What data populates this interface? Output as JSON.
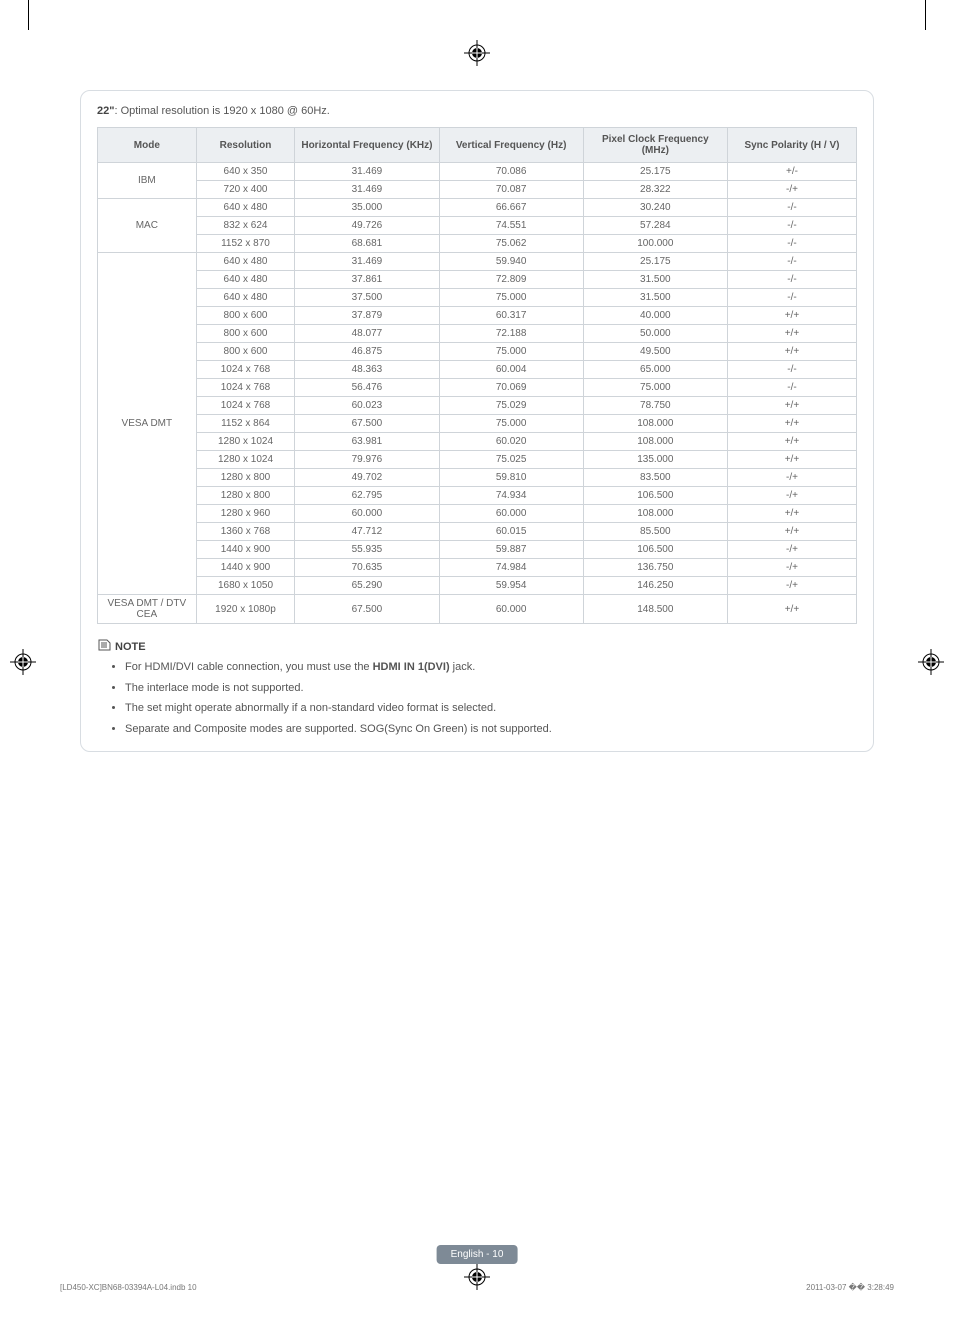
{
  "title_prefix": "22\"",
  "title_rest": ": Optimal resolution is 1920 x 1080 @ 60Hz.",
  "columns": [
    "Mode",
    "Resolution",
    "Horizontal Frequency (KHz)",
    "Vertical Frequency (Hz)",
    "Pixel Clock Frequency (MHz)",
    "Sync Polarity (H / V)"
  ],
  "groups": [
    {
      "mode": "IBM",
      "rows": [
        [
          "640 x 350",
          "31.469",
          "70.086",
          "25.175",
          "+/-"
        ],
        [
          "720 x 400",
          "31.469",
          "70.087",
          "28.322",
          "-/+"
        ]
      ]
    },
    {
      "mode": "MAC",
      "rows": [
        [
          "640 x 480",
          "35.000",
          "66.667",
          "30.240",
          "-/-"
        ],
        [
          "832 x 624",
          "49.726",
          "74.551",
          "57.284",
          "-/-"
        ],
        [
          "1152 x 870",
          "68.681",
          "75.062",
          "100.000",
          "-/-"
        ]
      ]
    },
    {
      "mode": "VESA DMT",
      "rows": [
        [
          "640 x 480",
          "31.469",
          "59.940",
          "25.175",
          "-/-"
        ],
        [
          "640 x 480",
          "37.861",
          "72.809",
          "31.500",
          "-/-"
        ],
        [
          "640 x 480",
          "37.500",
          "75.000",
          "31.500",
          "-/-"
        ],
        [
          "800 x 600",
          "37.879",
          "60.317",
          "40.000",
          "+/+"
        ],
        [
          "800 x 600",
          "48.077",
          "72.188",
          "50.000",
          "+/+"
        ],
        [
          "800 x 600",
          "46.875",
          "75.000",
          "49.500",
          "+/+"
        ],
        [
          "1024 x 768",
          "48.363",
          "60.004",
          "65.000",
          "-/-"
        ],
        [
          "1024 x 768",
          "56.476",
          "70.069",
          "75.000",
          "-/-"
        ],
        [
          "1024 x 768",
          "60.023",
          "75.029",
          "78.750",
          "+/+"
        ],
        [
          "1152 x 864",
          "67.500",
          "75.000",
          "108.000",
          "+/+"
        ],
        [
          "1280 x 1024",
          "63.981",
          "60.020",
          "108.000",
          "+/+"
        ],
        [
          "1280 x 1024",
          "79.976",
          "75.025",
          "135.000",
          "+/+"
        ],
        [
          "1280 x 800",
          "49.702",
          "59.810",
          "83.500",
          "-/+"
        ],
        [
          "1280 x 800",
          "62.795",
          "74.934",
          "106.500",
          "-/+"
        ],
        [
          "1280 x 960",
          "60.000",
          "60.000",
          "108.000",
          "+/+"
        ],
        [
          "1360 x 768",
          "47.712",
          "60.015",
          "85.500",
          "+/+"
        ],
        [
          "1440 x 900",
          "55.935",
          "59.887",
          "106.500",
          "-/+"
        ],
        [
          "1440 x 900",
          "70.635",
          "74.984",
          "136.750",
          "-/+"
        ],
        [
          "1680 x 1050",
          "65.290",
          "59.954",
          "146.250",
          "-/+"
        ]
      ]
    },
    {
      "mode": "VESA DMT / DTV CEA",
      "rows": [
        [
          "1920 x 1080p",
          "67.500",
          "60.000",
          "148.500",
          "+/+"
        ]
      ],
      "tall": true
    }
  ],
  "note_label": "NOTE",
  "notes": [
    {
      "pre": "For HDMI/DVI cable connection, you must use the ",
      "bold": "HDMI IN 1(DVI)",
      "post": " jack."
    },
    {
      "pre": "The interlace mode is not supported.",
      "bold": "",
      "post": ""
    },
    {
      "pre": "The set might operate abnormally if a non-standard video format is selected.",
      "bold": "",
      "post": ""
    },
    {
      "pre": "Separate and Composite modes are supported. SOG(Sync On Green) is not supported.",
      "bold": "",
      "post": ""
    }
  ],
  "footer_badge": "English - 10",
  "footer_left": "[LD450-XC]BN68-03394A-L04.indb   10",
  "footer_right_time": "2011-03-07   �� 3:28:49",
  "col_widths": [
    "13%",
    "13%",
    "19%",
    "19%",
    "19%",
    "17%"
  ]
}
